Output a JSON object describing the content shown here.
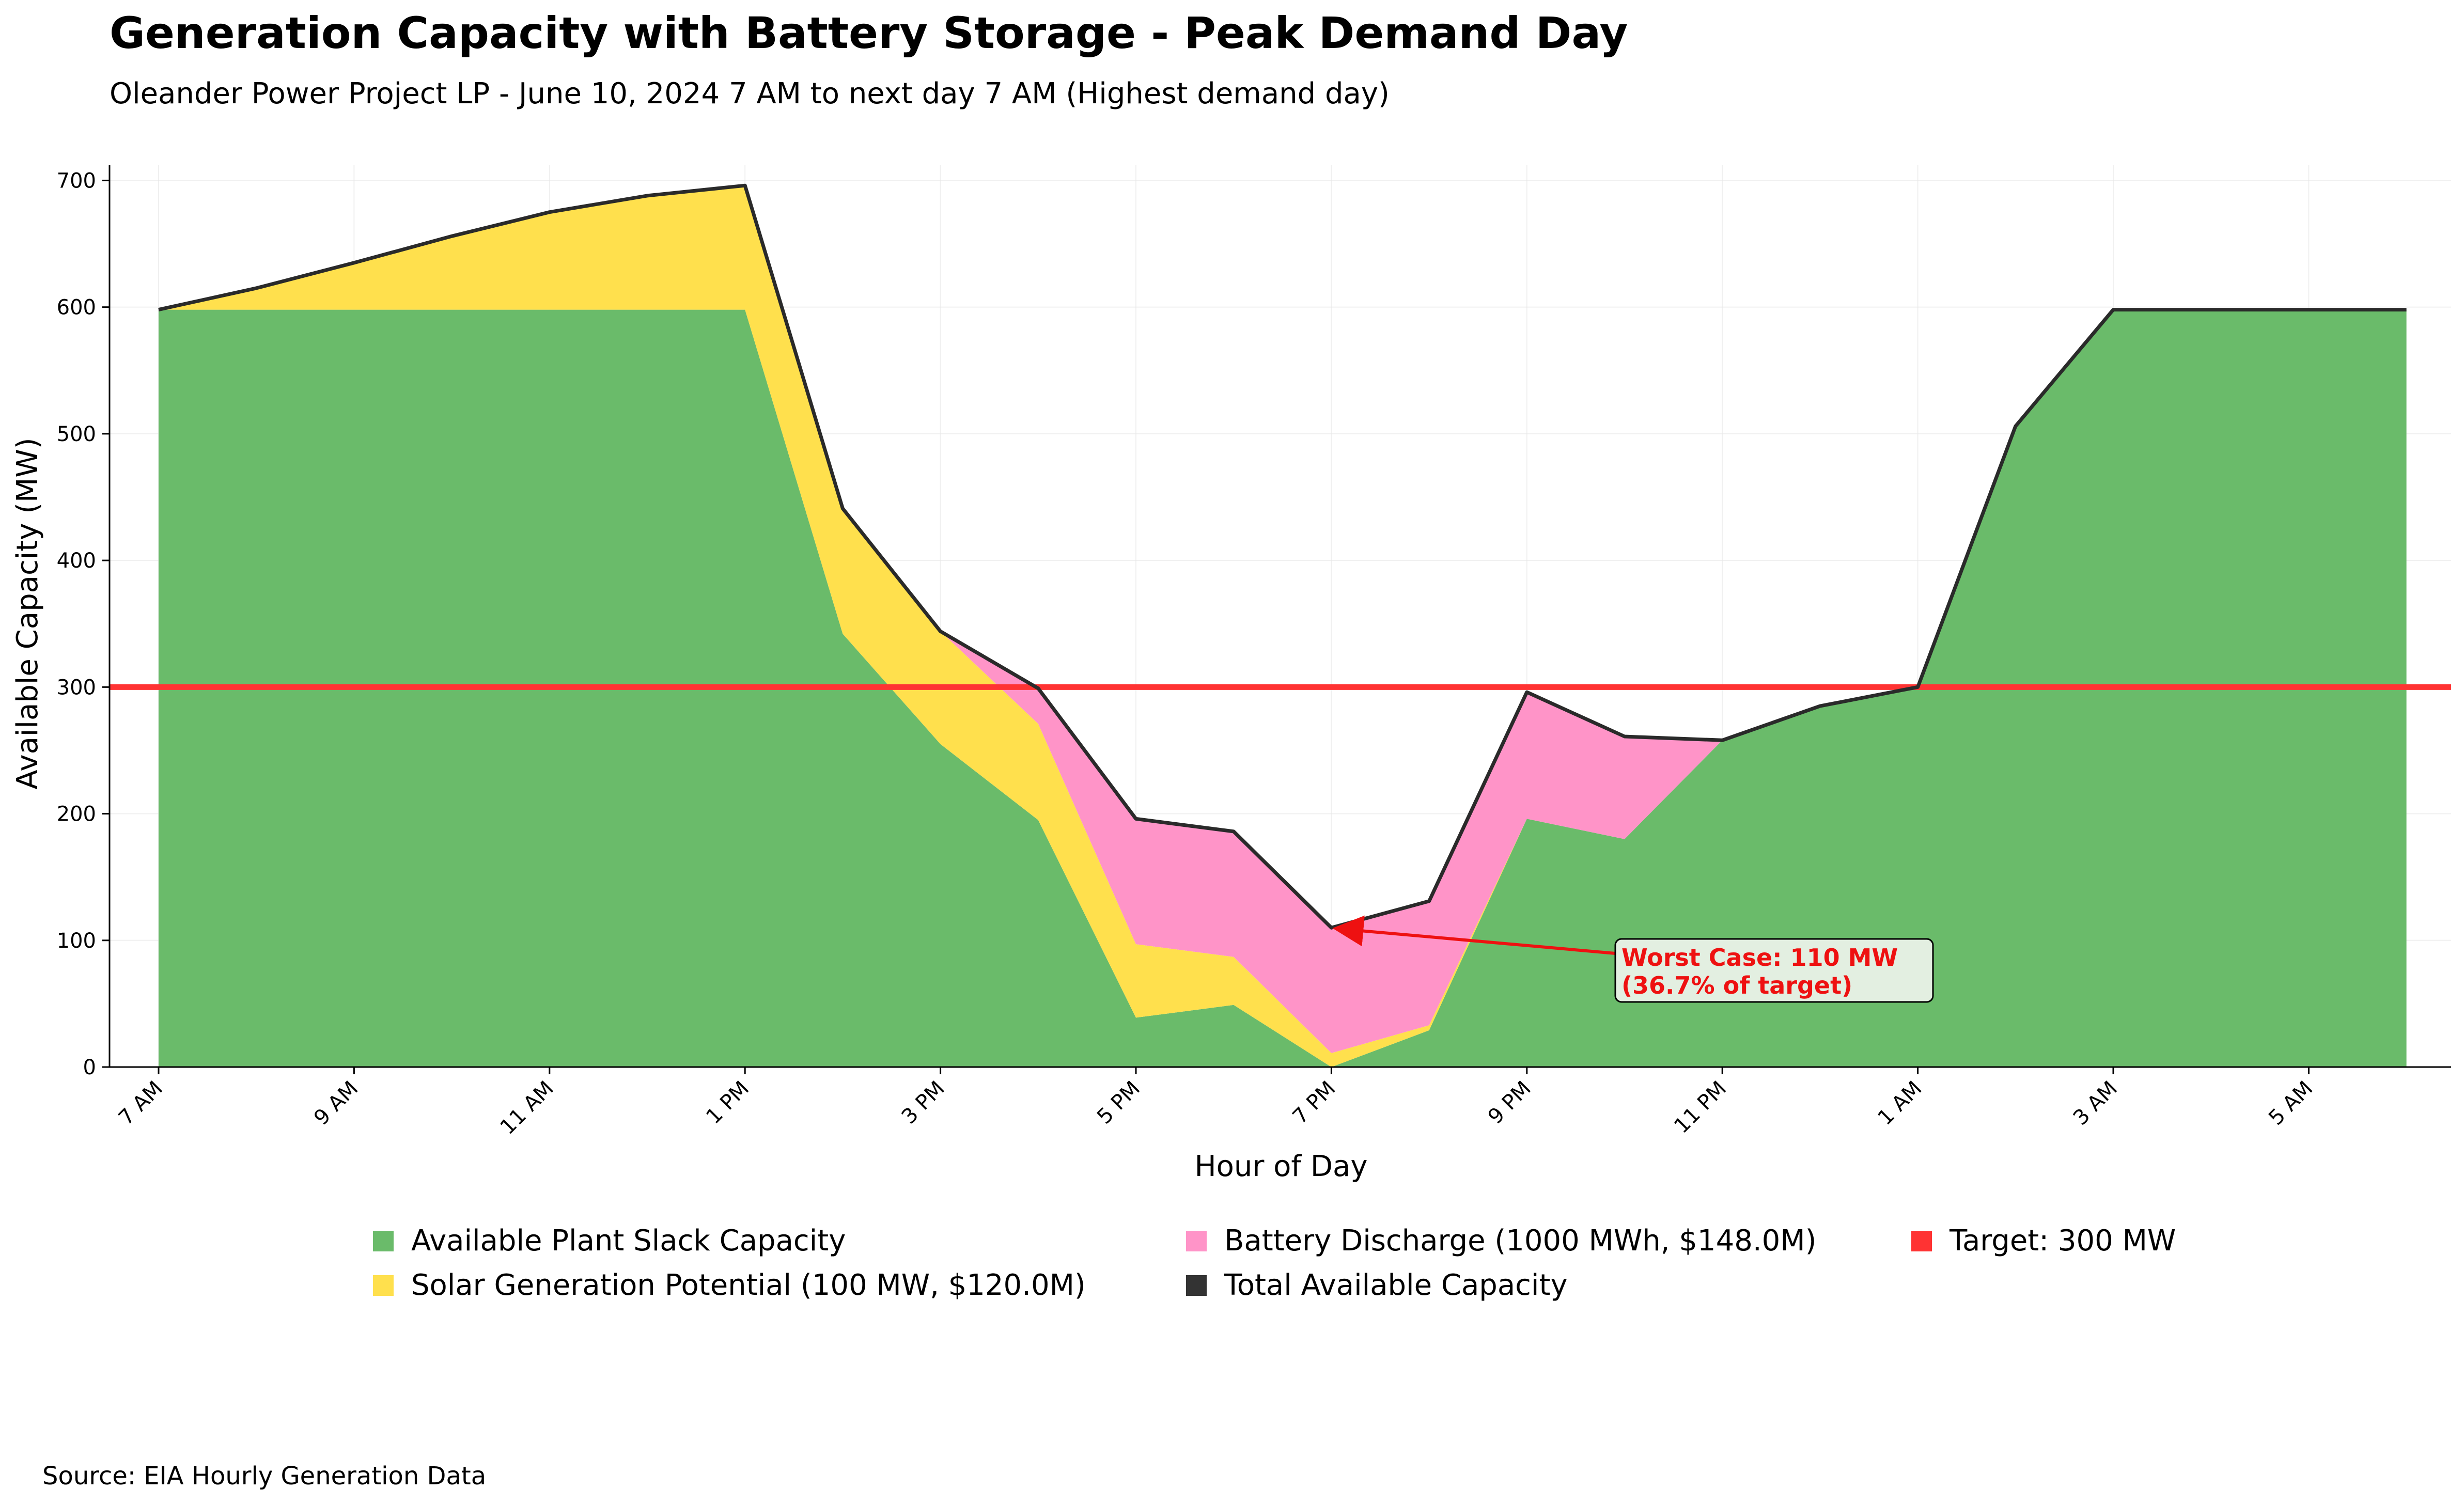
{
  "chart_data": {
    "type": "area",
    "title": "Generation Capacity with Battery Storage - Peak Demand Day",
    "subtitle": "Oleander Power Project LP - June 10, 2024 7 AM to next day 7 AM (Highest demand day)",
    "xlabel": "Hour of Day",
    "ylabel": "Available Capacity (MW)",
    "ylim": [
      0,
      712
    ],
    "yticks": [
      0,
      100,
      200,
      300,
      400,
      500,
      600,
      700
    ],
    "x_tick_labels": [
      "7 AM",
      "9 AM",
      "11 AM",
      "1 PM",
      "3 PM",
      "5 PM",
      "7 PM",
      "9 PM",
      "11 PM",
      "1 AM",
      "3 AM",
      "5 AM"
    ],
    "x_tick_every": 2,
    "grid": true,
    "legend_position": "bottom",
    "stacked": true,
    "series": [
      {
        "name": "Available Plant Slack Capacity",
        "color": "#6abb6a",
        "values": [
          598,
          598,
          598,
          598,
          598,
          598,
          598,
          342,
          255,
          195,
          39,
          49,
          0,
          29,
          196,
          180,
          258,
          285,
          300,
          506,
          598,
          598,
          598,
          598
        ]
      },
      {
        "name": "Solar Generation Potential (100 MW, $120.0M)",
        "color": "#ffe04d",
        "values": [
          0,
          17,
          37,
          58,
          77,
          90,
          98,
          99,
          89,
          76,
          58,
          38,
          11,
          4,
          0,
          0,
          0,
          0,
          0,
          0,
          0,
          0,
          0,
          0
        ]
      },
      {
        "name": "Battery Discharge (1000 MWh, $148.0M)",
        "color": "#ff94c8",
        "values": [
          0,
          0,
          0,
          0,
          0,
          0,
          0,
          0,
          0,
          28,
          99,
          99,
          99,
          98,
          100,
          81,
          0,
          0,
          0,
          0,
          0,
          0,
          0,
          0
        ]
      }
    ],
    "total_line": {
      "name": "Total Available Capacity",
      "color": "#2a2a2a",
      "values": [
        598,
        615,
        635,
        656,
        675,
        688,
        696,
        441,
        344,
        299,
        196,
        186,
        110,
        131,
        296,
        261,
        258,
        285,
        300,
        506,
        598,
        598,
        598,
        598
      ]
    },
    "target_line": {
      "name": "Target: 300 MW",
      "value": 300,
      "color": "#ff3333"
    },
    "annotation": {
      "line1": "Worst Case: 110 MW",
      "line2": "(36.7% of target)",
      "point_index": 12,
      "point_value": 110,
      "text_color": "#ee1111"
    }
  },
  "source": "Source: EIA Hourly Generation Data"
}
